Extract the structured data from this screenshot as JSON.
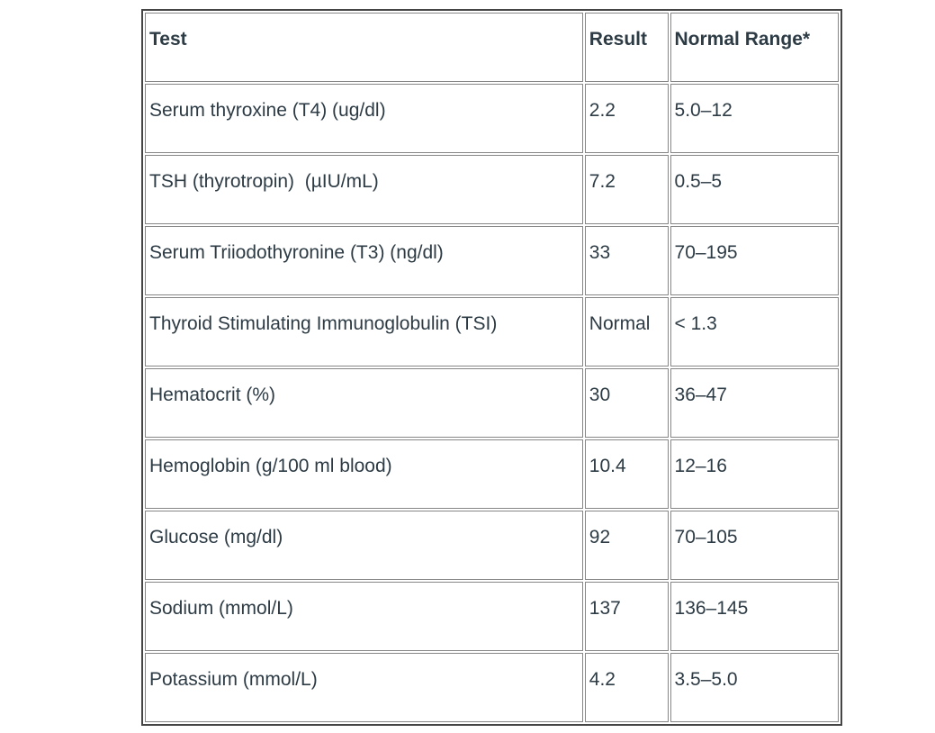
{
  "colors": {
    "text": "#2d3b45",
    "table_outer_border": "#454545",
    "cell_border": "#868686",
    "background": "#ffffff"
  },
  "table": {
    "columns": {
      "test": "Test",
      "result": "Result",
      "range": "Normal Range*"
    },
    "rows": [
      {
        "test": "Serum thyroxine (T4) (ug/dl)",
        "result": "2.2",
        "range": "5.0–12"
      },
      {
        "test": "TSH (thyrotropin)  (µIU/mL)",
        "result": "7.2",
        "range": "0.5–5"
      },
      {
        "test": "Serum Triiodothyronine (T3) (ng/dl)",
        "result": "33",
        "range": "70–195"
      },
      {
        "test": "Thyroid Stimulating Immunoglobulin (TSI)",
        "result": "Normal",
        "range": "< 1.3"
      },
      {
        "test": "Hematocrit (%)",
        "result": "30",
        "range": "36–47"
      },
      {
        "test": "Hemoglobin (g/100 ml blood)",
        "result": "10.4",
        "range": "12–16"
      },
      {
        "test": "Glucose (mg/dl)",
        "result": "92",
        "range": "70–105"
      },
      {
        "test": "Sodium (mmol/L)",
        "result": "137",
        "range": "136–145"
      },
      {
        "test": "Potassium (mmol/L)",
        "result": "4.2",
        "range": "3.5–5.0"
      }
    ]
  },
  "chart_data": {
    "type": "table",
    "title": "",
    "columns": [
      "Test",
      "Result",
      "Normal Range*"
    ],
    "rows": [
      [
        "Serum thyroxine (T4) (ug/dl)",
        "2.2",
        "5.0–12"
      ],
      [
        "TSH (thyrotropin)  (µIU/mL)",
        "7.2",
        "0.5–5"
      ],
      [
        "Serum Triiodothyronine (T3) (ng/dl)",
        "33",
        "70–195"
      ],
      [
        "Thyroid Stimulating Immunoglobulin (TSI)",
        "Normal",
        "< 1.3"
      ],
      [
        "Hematocrit (%)",
        "30",
        "36–47"
      ],
      [
        "Hemoglobin (g/100 ml blood)",
        "10.4",
        "12–16"
      ],
      [
        "Glucose (mg/dl)",
        "92",
        "70–105"
      ],
      [
        "Sodium (mmol/L)",
        "137",
        "136–145"
      ],
      [
        "Potassium (mmol/L)",
        "4.2",
        "3.5–5.0"
      ]
    ]
  }
}
